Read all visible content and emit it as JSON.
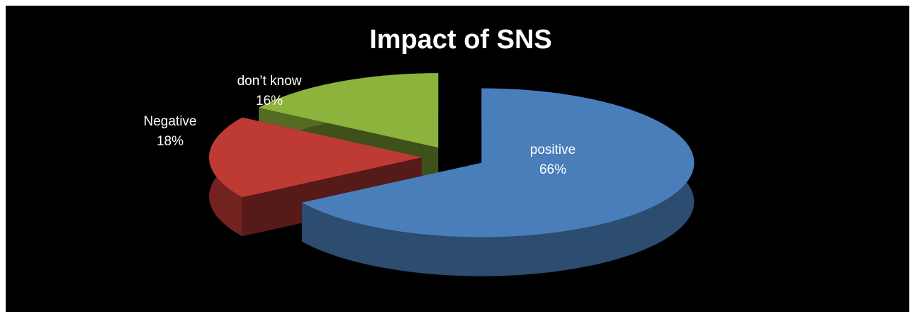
{
  "chart_data": {
    "type": "pie",
    "title": "Impact of SNS",
    "categories": [
      "positive",
      "Negative",
      "don’t know"
    ],
    "values": [
      66,
      18,
      16
    ],
    "value_labels": [
      "66%",
      "18%",
      "16%"
    ],
    "colors": [
      "#4a7ebb",
      "#be3a35",
      "#8cb33c"
    ]
  }
}
